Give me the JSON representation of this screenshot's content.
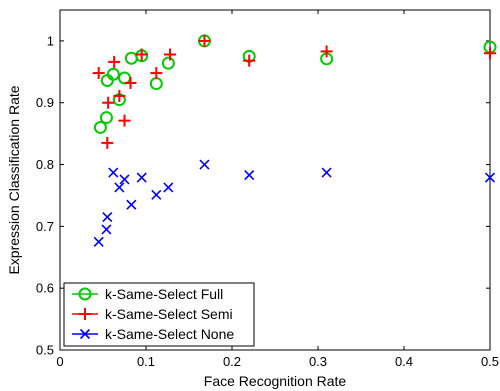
{
  "chart_data": {
    "type": "scatter",
    "title": "",
    "xlabel": "Face Recognition Rate",
    "ylabel": "Expression Classification Rate",
    "xlim": [
      0,
      0.5
    ],
    "ylim": [
      0.5,
      1.05
    ],
    "xticks": [
      0,
      0.1,
      0.2,
      0.3,
      0.4,
      0.5
    ],
    "xtick_labels": [
      "0",
      "0.1",
      "0.2",
      "0.3",
      "0.4",
      "0.5"
    ],
    "yticks": [
      0.5,
      0.6,
      0.7,
      0.8,
      0.9,
      1.0
    ],
    "ytick_labels": [
      "0.5",
      "0.6",
      "0.7",
      "0.8",
      "0.9",
      "1"
    ],
    "grid": false,
    "legend_position": "bottom-left",
    "series": [
      {
        "name": "k-Same-Select Full",
        "marker": "circle",
        "color": "#00cc00",
        "x": [
          0.047,
          0.054,
          0.055,
          0.062,
          0.069,
          0.075,
          0.083,
          0.095,
          0.112,
          0.126,
          0.168,
          0.22,
          0.31,
          0.5
        ],
        "y": [
          0.86,
          0.876,
          0.936,
          0.946,
          0.905,
          0.94,
          0.972,
          0.976,
          0.931,
          0.964,
          1.0,
          0.975,
          0.971,
          0.99
        ]
      },
      {
        "name": "k-Same-Select Semi",
        "marker": "plus",
        "color": "#ff0000",
        "x": [
          0.045,
          0.055,
          0.056,
          0.063,
          0.069,
          0.075,
          0.082,
          0.095,
          0.112,
          0.128,
          0.168,
          0.22,
          0.31,
          0.5
        ],
        "y": [
          0.948,
          0.835,
          0.9,
          0.966,
          0.911,
          0.871,
          0.932,
          0.978,
          0.948,
          0.978,
          1.0,
          0.968,
          0.983,
          0.98
        ]
      },
      {
        "name": "k-Same-Select None",
        "marker": "x",
        "color": "#0000ff",
        "x": [
          0.045,
          0.054,
          0.055,
          0.062,
          0.069,
          0.075,
          0.083,
          0.095,
          0.112,
          0.126,
          0.168,
          0.22,
          0.31,
          0.5
        ],
        "y": [
          0.675,
          0.695,
          0.715,
          0.787,
          0.763,
          0.776,
          0.735,
          0.779,
          0.751,
          0.763,
          0.8,
          0.783,
          0.787,
          0.779
        ]
      }
    ]
  }
}
